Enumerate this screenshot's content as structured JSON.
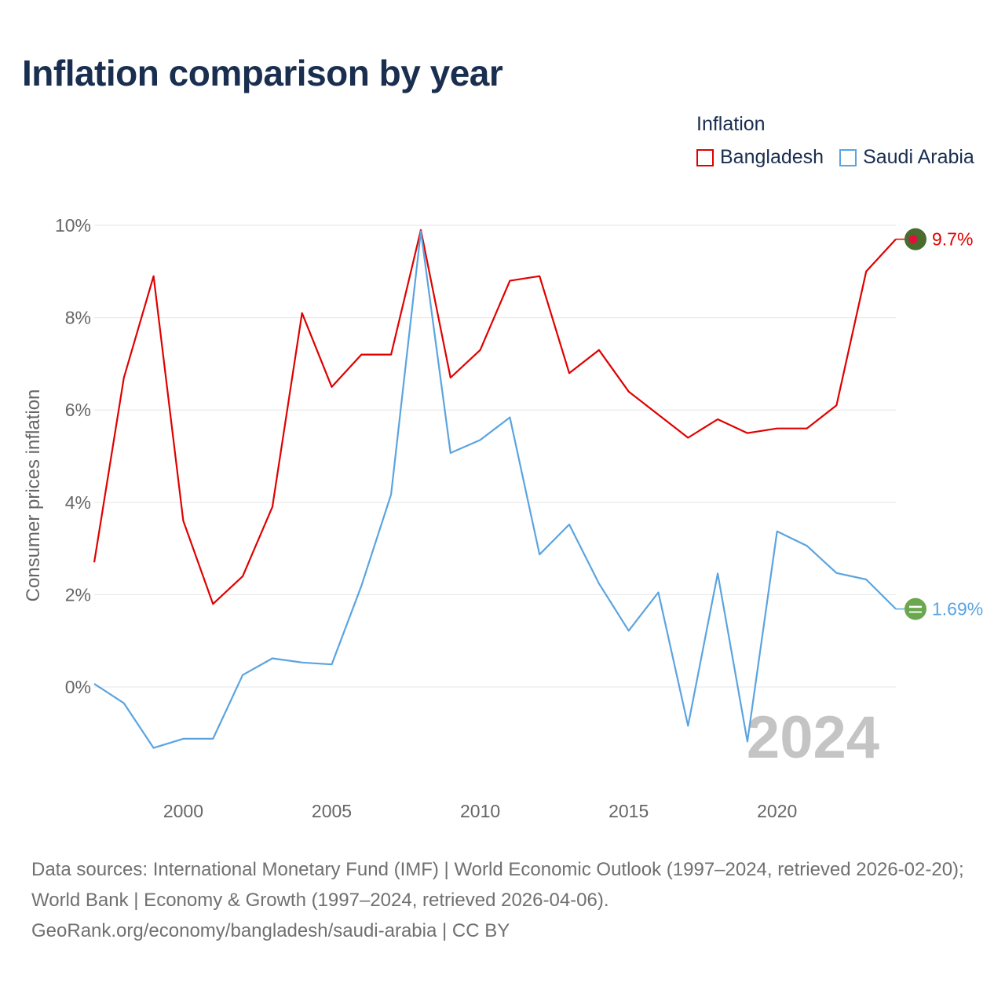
{
  "title": "Inflation comparison by year",
  "legend": {
    "title": "Inflation",
    "items": [
      "Bangladesh",
      "Saudi Arabia"
    ]
  },
  "footer": {
    "sources": "Data sources: International Monetary Fund (IMF) | World Economic Outlook (1997–2024, retrieved 2026-02-20); World Bank | Economy & Growth (1997–2024, retrieved 2026-04-06).",
    "credit": "GeoRank.org/economy/bangladesh/saudi-arabia | CC BY"
  },
  "colors": {
    "bangladesh": "#e00000",
    "saudi_arabia": "#5ba4e0",
    "grid": "#e6e6e6",
    "axis_text": "#666666",
    "year_watermark": "#c4c4c4",
    "flag_bd_green": "#4a6b2f",
    "flag_bd_red": "#e0103a",
    "flag_sa_green": "#6aa84f"
  },
  "chart_data": {
    "type": "line",
    "title": "Inflation comparison by year",
    "xlabel": "",
    "ylabel": "Consumer prices inflation",
    "xlim": [
      1997,
      2024
    ],
    "ylim": [
      -2,
      10
    ],
    "x_ticks": [
      2000,
      2005,
      2010,
      2015,
      2020
    ],
    "y_ticks": [
      0,
      2,
      4,
      6,
      8,
      10
    ],
    "y_tick_labels": [
      "0%",
      "2%",
      "4%",
      "6%",
      "8%",
      "10%"
    ],
    "grid": true,
    "legend_position": "top-right",
    "year_label": "2024",
    "x": [
      1997,
      1998,
      1999,
      2000,
      2001,
      2002,
      2003,
      2004,
      2005,
      2006,
      2007,
      2008,
      2009,
      2010,
      2011,
      2012,
      2013,
      2014,
      2015,
      2016,
      2017,
      2018,
      2019,
      2020,
      2021,
      2022,
      2023,
      2024
    ],
    "series": [
      {
        "name": "Bangladesh",
        "end_label": "9.7%",
        "values": [
          2.7,
          6.7,
          8.9,
          3.6,
          1.8,
          2.4,
          3.9,
          8.1,
          6.5,
          7.2,
          7.2,
          9.9,
          6.7,
          7.3,
          8.8,
          8.9,
          6.8,
          7.3,
          6.4,
          5.9,
          5.4,
          5.8,
          5.5,
          5.6,
          5.6,
          6.1,
          9.0,
          9.7
        ]
      },
      {
        "name": "Saudi Arabia",
        "end_label": "1.69%",
        "values": [
          0.07,
          -0.35,
          -1.32,
          -1.12,
          -1.12,
          0.26,
          0.62,
          0.53,
          0.49,
          2.19,
          4.17,
          9.87,
          5.07,
          5.35,
          5.84,
          2.87,
          3.52,
          2.24,
          1.22,
          2.05,
          -0.84,
          2.46,
          -1.18,
          3.37,
          3.06,
          2.47,
          2.33,
          1.69
        ]
      }
    ]
  }
}
